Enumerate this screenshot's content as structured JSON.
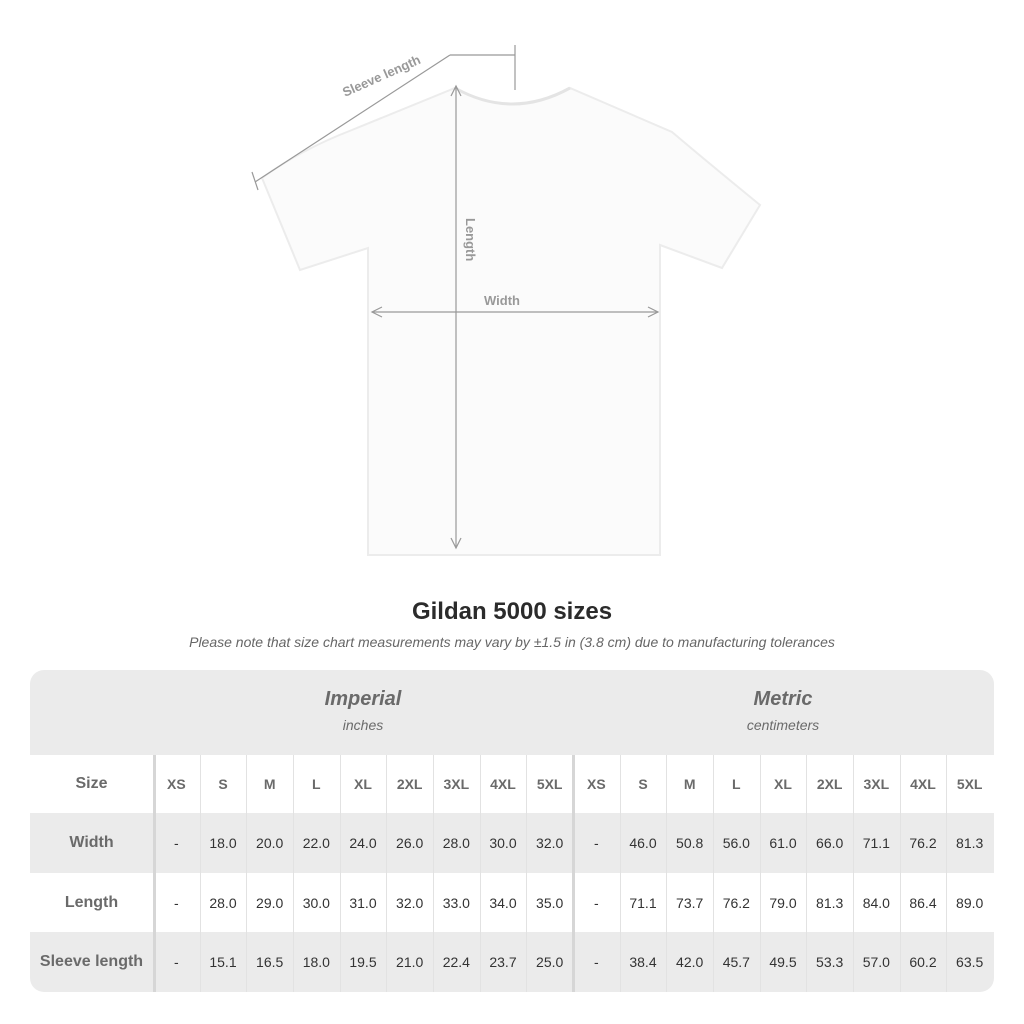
{
  "diagram": {
    "sleeve_label": "Sleeve length",
    "length_label": "Length",
    "width_label": "Width"
  },
  "title": "Gildan 5000 sizes",
  "note": "Please note that size chart measurements may vary by ±1.5 in (3.8 cm) due to manufacturing tolerances",
  "groups": [
    {
      "name": "Imperial",
      "unit": "inches"
    },
    {
      "name": "Metric",
      "unit": "centimeters"
    }
  ],
  "size_label": "Size",
  "sizes": [
    "XS",
    "S",
    "M",
    "L",
    "XL",
    "2XL",
    "3XL",
    "4XL",
    "5XL"
  ],
  "rows": [
    {
      "label": "Width",
      "imperial": [
        "-",
        "18.0",
        "20.0",
        "22.0",
        "24.0",
        "26.0",
        "28.0",
        "30.0",
        "32.0"
      ],
      "metric": [
        "-",
        "46.0",
        "50.8",
        "56.0",
        "61.0",
        "66.0",
        "71.1",
        "76.2",
        "81.3"
      ]
    },
    {
      "label": "Length",
      "imperial": [
        "-",
        "28.0",
        "29.0",
        "30.0",
        "31.0",
        "32.0",
        "33.0",
        "34.0",
        "35.0"
      ],
      "metric": [
        "-",
        "71.1",
        "73.7",
        "76.2",
        "79.0",
        "81.3",
        "84.0",
        "86.4",
        "89.0"
      ]
    },
    {
      "label": "Sleeve length",
      "imperial": [
        "-",
        "15.1",
        "16.5",
        "18.0",
        "19.5",
        "21.0",
        "22.4",
        "23.7",
        "25.0"
      ],
      "metric": [
        "-",
        "38.4",
        "42.0",
        "45.7",
        "49.5",
        "53.3",
        "57.0",
        "60.2",
        "63.5"
      ]
    }
  ]
}
